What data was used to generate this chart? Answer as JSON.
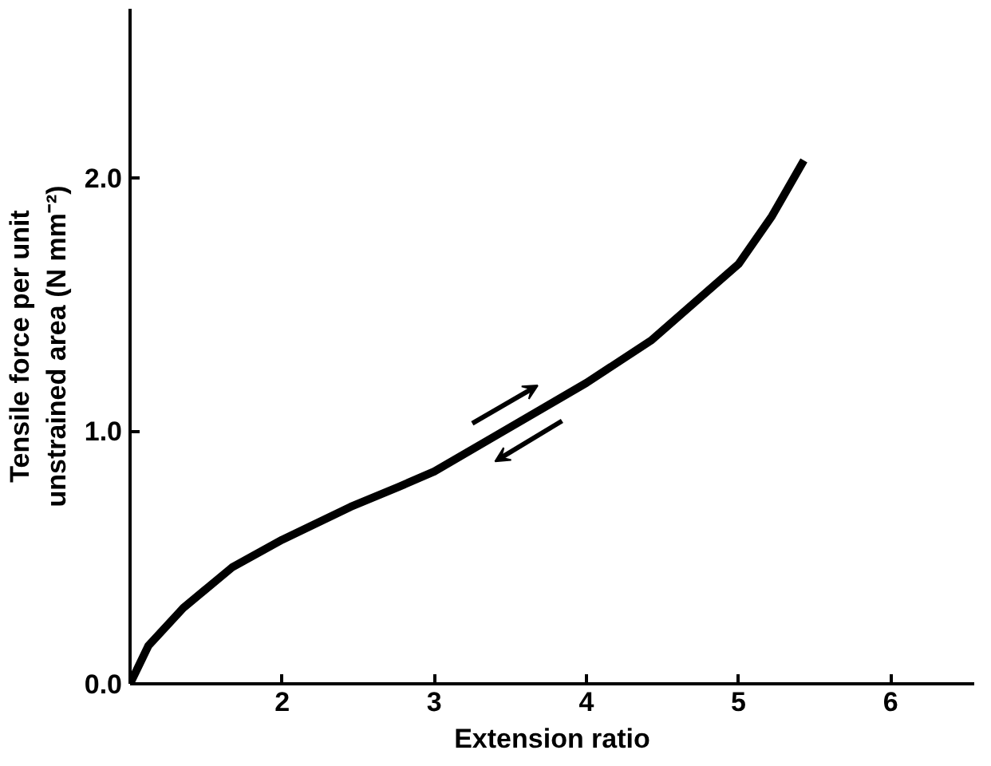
{
  "chart_data": {
    "type": "line",
    "xlabel": "Extension ratio",
    "ylabel": "Tensile force per unit\nunstrained area (N mm⁻²)",
    "x": [
      1,
      1.12,
      1.35,
      1.67,
      2.0,
      2.45,
      2.77,
      3.0,
      3.4,
      4.0,
      4.43,
      5.0,
      5.22,
      5.43
    ],
    "series": [
      {
        "color": "#000000",
        "values": [
          0,
          0.15,
          0.3,
          0.46,
          0.57,
          0.7,
          0.78,
          0.84,
          0.98,
          1.19,
          1.36,
          1.66,
          1.85,
          2.07
        ]
      }
    ],
    "xlim": [
      1,
      6.55
    ],
    "ylim": [
      0,
      2.67
    ],
    "xticks": [
      2,
      3,
      4,
      5,
      6
    ],
    "yticks": [
      {
        "value": 0,
        "label": "0.0"
      },
      {
        "value": 1,
        "label": "1.0"
      },
      {
        "value": 2,
        "label": "2.0"
      }
    ],
    "grid": false,
    "marker": "none",
    "line_style": "solid"
  }
}
